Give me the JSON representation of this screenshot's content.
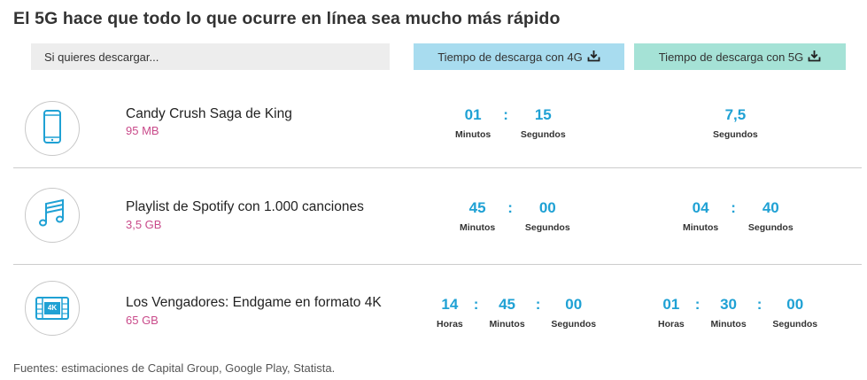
{
  "title": "El 5G hace que todo lo que ocurre en línea sea mucho más rápido",
  "header": {
    "question": "Si quieres descargar...",
    "col4g": "Tiempo de descarga con 4G",
    "col5g": "Tiempo de descarga con 5G"
  },
  "colors": {
    "accent_blue": "#1fa1d4",
    "size_pink": "#c94a8a",
    "header_4g": "#a8dcef",
    "header_5g": "#a5e2d6"
  },
  "rows": [
    {
      "icon": "phone-icon",
      "name": "Candy Crush Saga de King",
      "size": "95 MB",
      "t4g": {
        "a": "01",
        "b": "15",
        "la": "Minutos",
        "lb": "Segundos",
        "sep1": ":"
      },
      "t5g": {
        "a": "7,5",
        "la": "Segundos"
      }
    },
    {
      "icon": "music-note-icon",
      "name": "Playlist de Spotify con 1.000 canciones",
      "size": "3,5 GB",
      "t4g": {
        "a": "45",
        "b": "00",
        "la": "Minutos",
        "lb": "Segundos",
        "sep1": ":"
      },
      "t5g": {
        "a": "04",
        "b": "40",
        "la": "Minutos",
        "lb": "Segundos",
        "sep1": ":"
      }
    },
    {
      "icon": "film-4k-icon",
      "icon_text": "4K",
      "name": "Los Vengadores: Endgame en formato 4K",
      "size": "65 GB",
      "t4g": {
        "a": "14",
        "b": "45",
        "c": "00",
        "la": "Horas",
        "lb": "Minutos",
        "lc": "Segundos",
        "sep1": ":",
        "sep2": ":"
      },
      "t5g": {
        "a": "01",
        "b": "30",
        "c": "00",
        "la": "Horas",
        "lb": "Minutos",
        "lc": "Segundos",
        "sep1": ":",
        "sep2": ":"
      }
    }
  ],
  "source": "Fuentes: estimaciones de Capital Group, Google Play, Statista."
}
